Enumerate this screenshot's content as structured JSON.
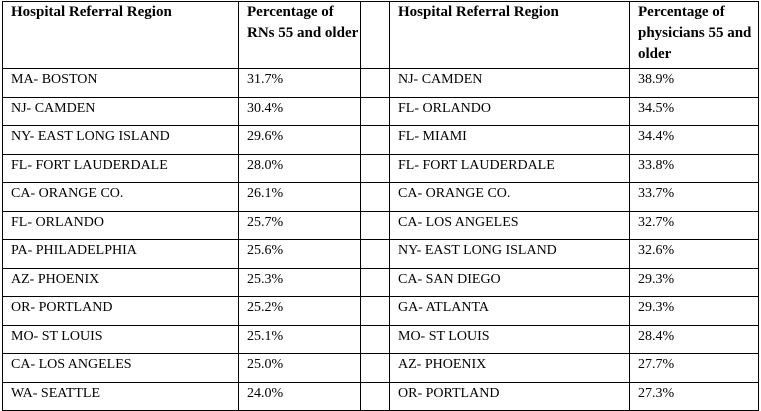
{
  "headers": {
    "rn_region": "Hospital Referral Region",
    "rn_percentage": "Percentage of RNs 55 and older",
    "physician_region": "Hospital Referral Region",
    "physician_percentage": "Percentage of physicians 55 and older"
  },
  "rows": [
    {
      "rn_region": "MA- BOSTON",
      "rn_pct": "31.7%",
      "phys_region": "NJ- CAMDEN",
      "phys_pct": "38.9%"
    },
    {
      "rn_region": "NJ- CAMDEN",
      "rn_pct": "30.4%",
      "phys_region": "FL- ORLANDO",
      "phys_pct": "34.5%"
    },
    {
      "rn_region": "NY- EAST LONG ISLAND",
      "rn_pct": "29.6%",
      "phys_region": "FL- MIAMI",
      "phys_pct": "34.4%"
    },
    {
      "rn_region": "FL- FORT LAUDERDALE",
      "rn_pct": "28.0%",
      "phys_region": "FL- FORT LAUDERDALE",
      "phys_pct": "33.8%"
    },
    {
      "rn_region": "CA- ORANGE CO.",
      "rn_pct": "26.1%",
      "phys_region": "CA- ORANGE CO.",
      "phys_pct": "33.7%"
    },
    {
      "rn_region": "FL- ORLANDO",
      "rn_pct": "25.7%",
      "phys_region": "CA- LOS ANGELES",
      "phys_pct": "32.7%"
    },
    {
      "rn_region": "PA- PHILADELPHIA",
      "rn_pct": "25.6%",
      "phys_region": "NY- EAST LONG ISLAND",
      "phys_pct": "32.6%"
    },
    {
      "rn_region": "AZ- PHOENIX",
      "rn_pct": "25.3%",
      "phys_region": "CA- SAN DIEGO",
      "phys_pct": "29.3%"
    },
    {
      "rn_region": "OR- PORTLAND",
      "rn_pct": "25.2%",
      "phys_region": "GA- ATLANTA",
      "phys_pct": "29.3%"
    },
    {
      "rn_region": "MO- ST LOUIS",
      "rn_pct": "25.1%",
      "phys_region": "MO- ST LOUIS",
      "phys_pct": "28.4%"
    },
    {
      "rn_region": "CA- LOS ANGELES",
      "rn_pct": "25.0%",
      "phys_region": "AZ- PHOENIX",
      "phys_pct": "27.7%"
    },
    {
      "rn_region": "WA- SEATTLE",
      "rn_pct": "24.0%",
      "phys_region": "OR- PORTLAND",
      "phys_pct": "27.3%"
    }
  ]
}
